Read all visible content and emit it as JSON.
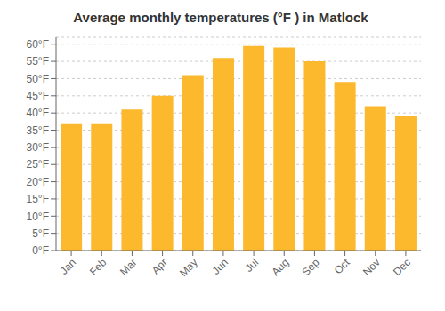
{
  "chart_data": {
    "type": "bar",
    "title": "Average monthly temperatures (°F ) in Matlock",
    "categories": [
      "Jan",
      "Feb",
      "Mar",
      "Apr",
      "May",
      "Jun",
      "Jul",
      "Aug",
      "Sep",
      "Oct",
      "Nov",
      "Dec"
    ],
    "values": [
      37,
      37,
      41,
      45,
      51,
      56,
      59.5,
      59,
      55,
      49,
      42,
      39
    ],
    "color": "#FDB92E",
    "ylim": [
      0,
      62
    ],
    "yticks": [
      {
        "value": 0,
        "label": "0°F"
      },
      {
        "value": 5,
        "label": "5°F"
      },
      {
        "value": 10,
        "label": "10°F"
      },
      {
        "value": 15,
        "label": "15°F"
      },
      {
        "value": 20,
        "label": "20°F"
      },
      {
        "value": 25,
        "label": "25°F"
      },
      {
        "value": 30,
        "label": "30°F"
      },
      {
        "value": 35,
        "label": "35°F"
      },
      {
        "value": 40,
        "label": "40°F"
      },
      {
        "value": 45,
        "label": "45°F"
      },
      {
        "value": 50,
        "label": "50°F"
      },
      {
        "value": 55,
        "label": "55°F"
      },
      {
        "value": 60,
        "label": "60°F"
      }
    ],
    "grid": true
  }
}
